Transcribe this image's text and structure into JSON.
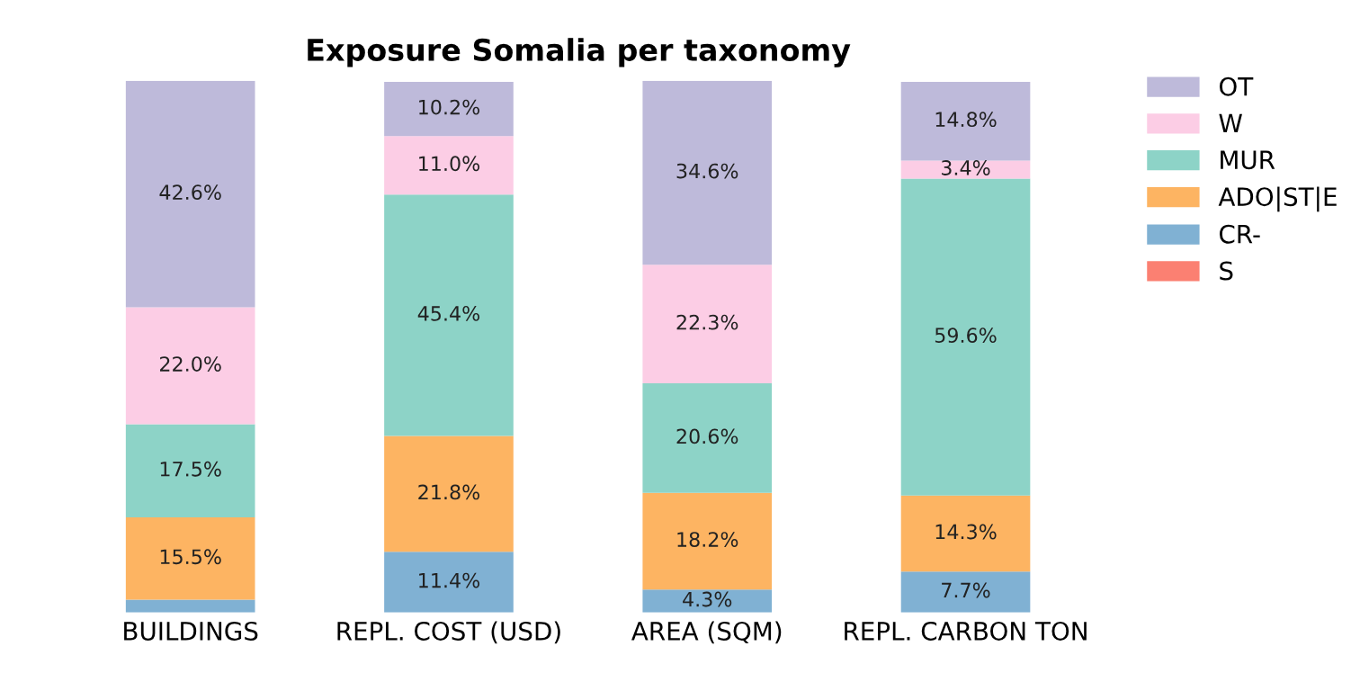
{
  "chart_data": {
    "type": "bar",
    "title": "Exposure Somalia per taxonomy",
    "stacked": true,
    "categories": [
      "BUILDINGS",
      "REPL. COST (USD)",
      "AREA (SQM)",
      "REPL. CARBON TON"
    ],
    "tick_labels": "x",
    "legend": "right",
    "grid": false,
    "series": [
      {
        "name": "S",
        "color": "#fb8072",
        "values": [
          0,
          0,
          0,
          0
        ],
        "value_labels": [
          null,
          null,
          null,
          null
        ]
      },
      {
        "name": "CR-",
        "color": "#80b1d3",
        "values": [
          2.4,
          11.4,
          4.3,
          7.7
        ],
        "value_labels": [
          null,
          "11.4%",
          "4.3%",
          "7.7%"
        ]
      },
      {
        "name": "ADO|ST|E",
        "color": "#fdb462",
        "values": [
          15.5,
          21.8,
          18.2,
          14.3
        ],
        "value_labels": [
          "15.5%",
          "21.8%",
          "18.2%",
          "14.3%"
        ]
      },
      {
        "name": "MUR",
        "color": "#8dd3c7",
        "values": [
          17.5,
          45.4,
          20.6,
          59.6
        ],
        "value_labels": [
          "17.5%",
          "45.4%",
          "20.6%",
          "59.6%"
        ]
      },
      {
        "name": "W",
        "color": "#fccde5",
        "values": [
          22.0,
          11.0,
          22.3,
          3.4
        ],
        "value_labels": [
          "22.0%",
          "11.0%",
          "22.3%",
          "3.4%"
        ]
      },
      {
        "name": "OT",
        "color": "#bebada",
        "values": [
          42.6,
          10.2,
          34.6,
          14.8
        ],
        "value_labels": [
          "42.6%",
          "10.2%",
          "34.6%",
          "14.8%"
        ]
      }
    ]
  }
}
